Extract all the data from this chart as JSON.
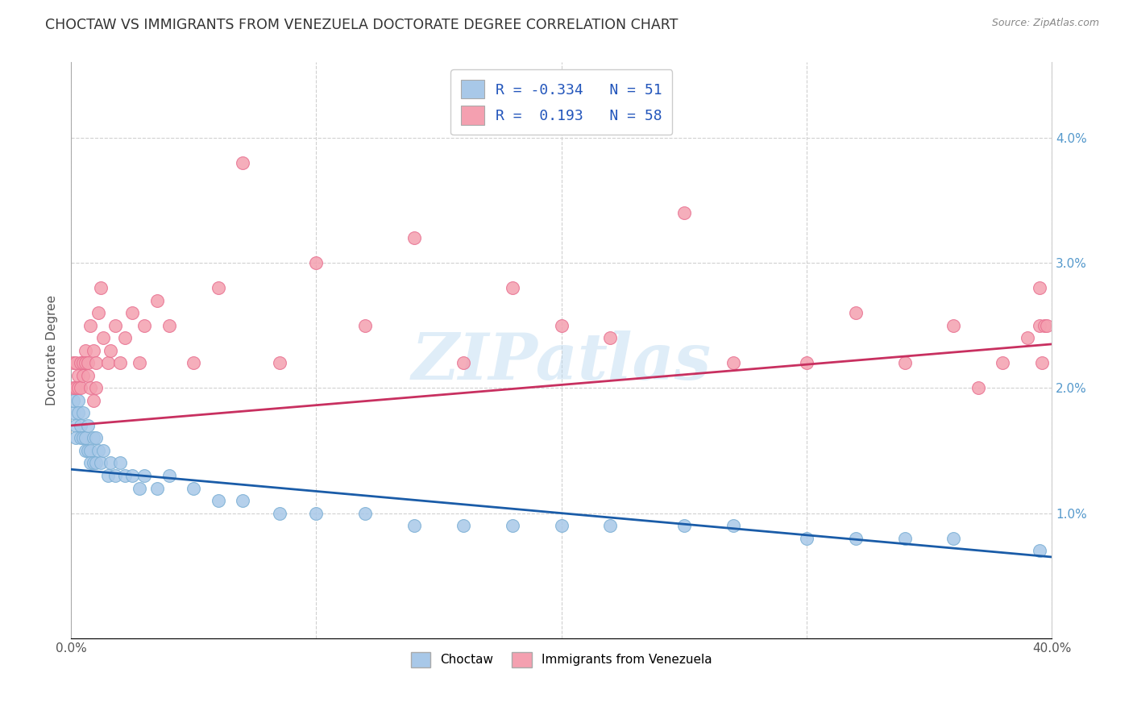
{
  "title": "CHOCTAW VS IMMIGRANTS FROM VENEZUELA DOCTORATE DEGREE CORRELATION CHART",
  "source": "Source: ZipAtlas.com",
  "ylabel": "Doctorate Degree",
  "watermark": "ZIPatlas",
  "xlim": [
    0.0,
    0.4
  ],
  "ylim": [
    0.0,
    0.046
  ],
  "xticks": [
    0.0,
    0.1,
    0.2,
    0.3,
    0.4
  ],
  "xticklabels": [
    "0.0%",
    "",
    "",
    "",
    "40.0%"
  ],
  "yticks": [
    0.0,
    0.01,
    0.02,
    0.03,
    0.04
  ],
  "yticklabels_right": [
    "",
    "1.0%",
    "2.0%",
    "3.0%",
    "4.0%"
  ],
  "choctaw_color": "#a8c8e8",
  "venezuela_color": "#f4a0b0",
  "choctaw_edge_color": "#7bafd4",
  "venezuela_edge_color": "#e87090",
  "choctaw_line_color": "#1a5ca8",
  "venezuela_line_color": "#c83060",
  "background_color": "#ffffff",
  "grid_color": "#d0d0d0",
  "title_fontsize": 12.5,
  "axis_label_fontsize": 11,
  "tick_fontsize": 11,
  "legend_blue_text": "R = -0.334   N = 51",
  "legend_pink_text": "R =  0.193   N = 58",
  "choctaw_x": [
    0.001,
    0.001,
    0.002,
    0.002,
    0.003,
    0.003,
    0.004,
    0.004,
    0.005,
    0.005,
    0.006,
    0.006,
    0.007,
    0.007,
    0.008,
    0.008,
    0.009,
    0.009,
    0.01,
    0.01,
    0.011,
    0.012,
    0.013,
    0.015,
    0.016,
    0.018,
    0.02,
    0.022,
    0.025,
    0.028,
    0.03,
    0.035,
    0.04,
    0.05,
    0.06,
    0.07,
    0.085,
    0.1,
    0.12,
    0.14,
    0.16,
    0.18,
    0.2,
    0.22,
    0.25,
    0.27,
    0.3,
    0.32,
    0.34,
    0.36,
    0.395
  ],
  "choctaw_y": [
    0.018,
    0.019,
    0.017,
    0.016,
    0.019,
    0.018,
    0.017,
    0.016,
    0.018,
    0.016,
    0.015,
    0.016,
    0.015,
    0.017,
    0.015,
    0.014,
    0.016,
    0.014,
    0.016,
    0.014,
    0.015,
    0.014,
    0.015,
    0.013,
    0.014,
    0.013,
    0.014,
    0.013,
    0.013,
    0.012,
    0.013,
    0.012,
    0.013,
    0.012,
    0.011,
    0.011,
    0.01,
    0.01,
    0.01,
    0.009,
    0.009,
    0.009,
    0.009,
    0.009,
    0.009,
    0.009,
    0.008,
    0.008,
    0.008,
    0.008,
    0.007
  ],
  "venezuela_x": [
    0.001,
    0.001,
    0.002,
    0.002,
    0.003,
    0.003,
    0.004,
    0.004,
    0.005,
    0.005,
    0.006,
    0.006,
    0.007,
    0.007,
    0.008,
    0.008,
    0.009,
    0.009,
    0.01,
    0.01,
    0.011,
    0.012,
    0.013,
    0.015,
    0.016,
    0.018,
    0.02,
    0.022,
    0.025,
    0.028,
    0.03,
    0.035,
    0.04,
    0.05,
    0.06,
    0.07,
    0.085,
    0.1,
    0.12,
    0.14,
    0.16,
    0.18,
    0.2,
    0.22,
    0.25,
    0.27,
    0.3,
    0.32,
    0.34,
    0.36,
    0.37,
    0.38,
    0.39,
    0.395,
    0.395,
    0.396,
    0.397,
    0.398
  ],
  "venezuela_y": [
    0.02,
    0.022,
    0.02,
    0.022,
    0.021,
    0.02,
    0.022,
    0.02,
    0.022,
    0.021,
    0.023,
    0.022,
    0.022,
    0.021,
    0.025,
    0.02,
    0.023,
    0.019,
    0.022,
    0.02,
    0.026,
    0.028,
    0.024,
    0.022,
    0.023,
    0.025,
    0.022,
    0.024,
    0.026,
    0.022,
    0.025,
    0.027,
    0.025,
    0.022,
    0.028,
    0.038,
    0.022,
    0.03,
    0.025,
    0.032,
    0.022,
    0.028,
    0.025,
    0.024,
    0.034,
    0.022,
    0.022,
    0.026,
    0.022,
    0.025,
    0.02,
    0.022,
    0.024,
    0.025,
    0.028,
    0.022,
    0.025,
    0.025
  ],
  "choctaw_line_x": [
    0.0,
    0.4
  ],
  "choctaw_line_y": [
    0.0135,
    0.0065
  ],
  "venezuela_line_x": [
    0.0,
    0.4
  ],
  "venezuela_line_y": [
    0.017,
    0.0235
  ]
}
